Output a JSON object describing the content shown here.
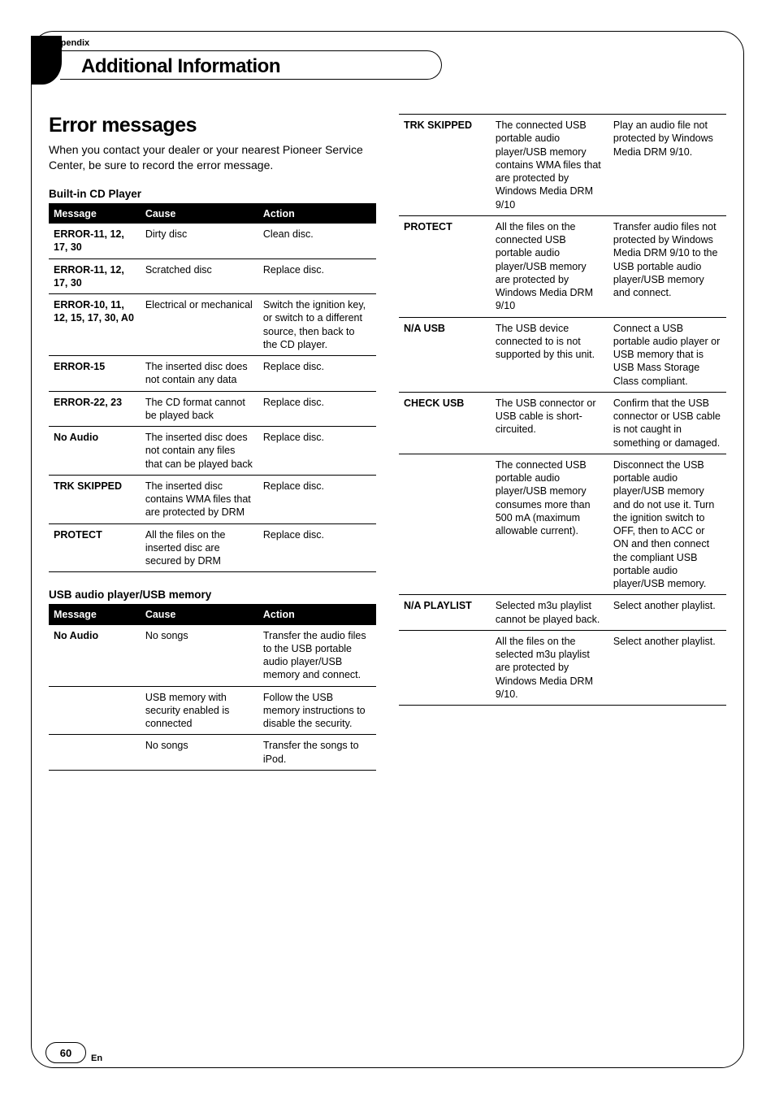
{
  "appendix_label": "Appendix",
  "section_title": "Additional Information",
  "heading": "Error messages",
  "intro": "When you contact your dealer or your nearest Pioneer Service Center, be sure to record the error message.",
  "sub1": "Built-in CD Player",
  "headers": {
    "msg": "Message",
    "cause": "Cause",
    "action": "Action"
  },
  "cd_rows": [
    {
      "msg": "ERROR-11, 12, 17, 30",
      "cause": "Dirty disc",
      "action": "Clean disc."
    },
    {
      "msg": "ERROR-11, 12, 17, 30",
      "cause": "Scratched disc",
      "action": "Replace disc."
    },
    {
      "msg": "ERROR-10, 11, 12, 15, 17, 30, A0",
      "cause": "Electrical or mechanical",
      "action": "Switch the ignition key, or switch to a different source, then back to the CD player."
    },
    {
      "msg": "ERROR-15",
      "cause": "The inserted disc does not contain any data",
      "action": "Replace disc."
    },
    {
      "msg": "ERROR-22, 23",
      "cause": "The CD format cannot be played back",
      "action": "Replace disc."
    },
    {
      "msg": "No Audio",
      "cause": "The inserted disc does not contain any files that can be played back",
      "action": "Replace disc."
    },
    {
      "msg": "TRK SKIPPED",
      "cause": "The inserted disc contains WMA files that are protected by DRM",
      "action": "Replace disc."
    },
    {
      "msg": "PROTECT",
      "cause": "All the files on the inserted disc are secured by DRM",
      "action": "Replace disc."
    }
  ],
  "sub2": "USB audio player/USB memory",
  "usb_rows_left": [
    {
      "msg": "No Audio",
      "cause": "No songs",
      "action": "Transfer the audio files to the USB portable audio player/USB memory and connect."
    },
    {
      "msg": "",
      "cause": "USB memory with security enabled is connected",
      "action": "Follow the USB memory instructions to disable the security."
    },
    {
      "msg": "",
      "cause": "No songs",
      "action": "Transfer the songs to iPod."
    }
  ],
  "usb_rows_right": [
    {
      "msg": "TRK SKIPPED",
      "cause": "The connected USB portable audio player/USB memory contains WMA files that are protected by Windows Media DRM 9/10",
      "action": "Play an audio file not protected by Windows Media DRM 9/10."
    },
    {
      "msg": "PROTECT",
      "cause": "All the files on the connected USB portable audio player/USB memory are protected by Windows Media DRM 9/10",
      "action": "Transfer audio files not protected by Windows Media DRM 9/10 to the USB portable audio player/USB memory and connect."
    },
    {
      "msg": "N/A USB",
      "cause": "The USB device connected to is not supported by this unit.",
      "action": "Connect a USB portable audio player or USB memory that is USB Mass Storage Class compliant."
    },
    {
      "msg": "CHECK USB",
      "cause": "The USB connector or USB cable is short-circuited.",
      "action": "Confirm that the USB connector or USB cable is not caught in something or damaged."
    },
    {
      "msg": "",
      "cause": "The connected USB portable audio player/USB memory consumes more than 500 mA (maximum allowable current).",
      "action": "Disconnect the USB portable audio player/USB memory and do not use it. Turn the ignition switch to OFF, then to ACC or ON and then connect the compliant USB portable audio player/USB memory."
    },
    {
      "msg": "N/A PLAYLIST",
      "cause": "Selected m3u playlist cannot be played back.",
      "action": "Select another playlist."
    },
    {
      "msg": "",
      "cause": "All the files on the selected m3u playlist are protected by Windows Media DRM 9/10.",
      "action": "Select another playlist."
    }
  ],
  "page_number": "60",
  "en_label": "En"
}
